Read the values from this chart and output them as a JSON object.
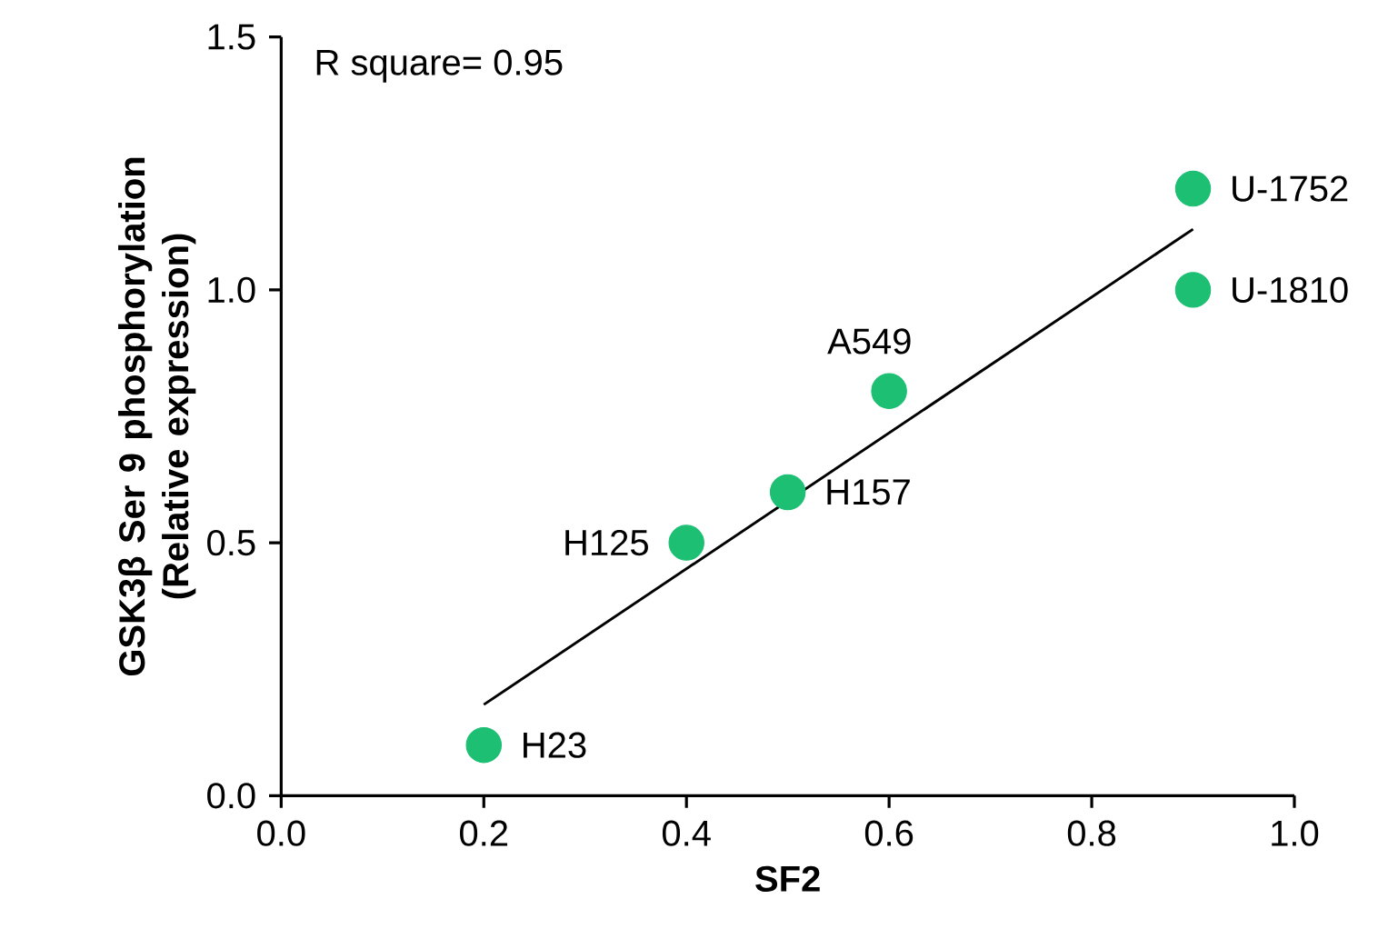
{
  "chart_data": {
    "type": "scatter",
    "xlabel": "SF2",
    "ylabel": "GSK3β Ser 9 phosphorylation (Relative expression)",
    "series": [
      {
        "color": "#1dbf73",
        "marker": "circle",
        "x": [
          0.2,
          0.4,
          0.5,
          0.6,
          0.9,
          0.9
        ],
        "values": [
          0.1,
          0.5,
          0.6,
          0.8,
          1.2,
          1.0
        ]
      },
      {
        "type": "line",
        "color": "#000000",
        "marker": "none",
        "x": [
          0.2,
          0.9
        ],
        "values": [
          0.18,
          1.12
        ]
      }
    ],
    "annotations": [
      "R square= 0.95",
      {
        "text": "H23",
        "x": 0.2,
        "y": 0.1
      },
      {
        "text": "H125",
        "x": 0.4,
        "y": 0.5
      },
      {
        "text": "H157",
        "x": 0.5,
        "y": 0.6
      },
      {
        "text": "A549",
        "x": 0.6,
        "y": 0.8
      },
      {
        "text": "U-1752",
        "x": 0.9,
        "y": 1.2
      },
      {
        "text": "U-1810",
        "x": 0.9,
        "y": 1.0
      }
    ],
    "xlim": [
      0,
      1
    ],
    "ylim": [
      0,
      1.5
    ],
    "xticks": [
      {
        "value": 0,
        "label": "0.0"
      },
      {
        "value": 0.2,
        "label": "0.2"
      },
      {
        "value": 0.4,
        "label": "0.4"
      },
      {
        "value": 0.6,
        "label": "0.6"
      },
      {
        "value": 0.8,
        "label": "0.8"
      },
      {
        "value": 1,
        "label": "1.0"
      }
    ],
    "yticks": [
      {
        "value": 0,
        "label": "0.0"
      },
      {
        "value": 0.5,
        "label": "0.5"
      },
      {
        "value": 1,
        "label": "1.0"
      },
      {
        "value": 1.5,
        "label": "1.5"
      }
    ],
    "grid": false
  }
}
